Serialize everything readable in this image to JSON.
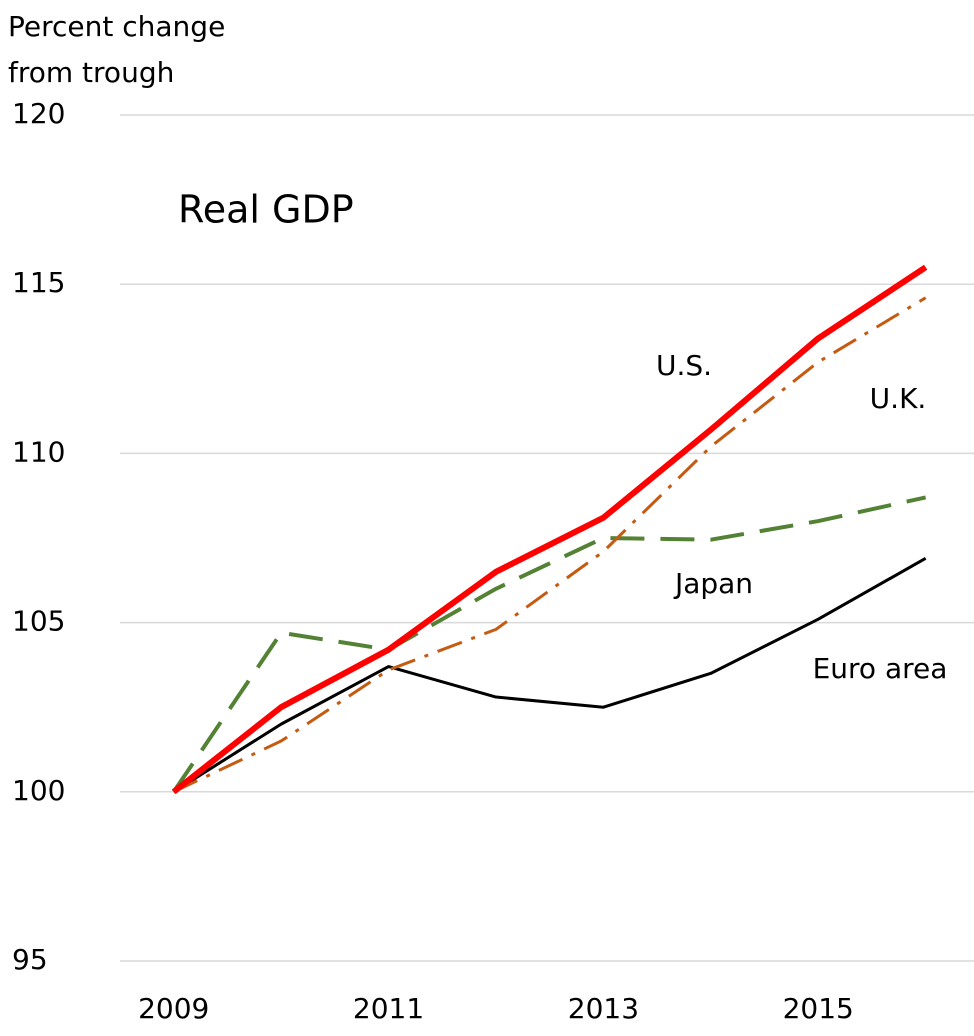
{
  "chart_data": {
    "type": "line",
    "title": "Real GDP",
    "y_label": [
      "Percent change",
      "from trough"
    ],
    "x": [
      2009,
      2010,
      2011,
      2012,
      2013,
      2014,
      2015,
      2016
    ],
    "xlim": [
      2008.5,
      2016.45
    ],
    "xticks": [
      2009,
      2011,
      2013,
      2015
    ],
    "ylim": [
      95,
      120
    ],
    "yticks": [
      95,
      100,
      105,
      110,
      115,
      120
    ],
    "grid": true,
    "series": [
      {
        "name": "U.S.",
        "color": "#ff0000",
        "style": "solid",
        "values": [
          100,
          102.5,
          104.2,
          106.5,
          108.1,
          110.7,
          113.4,
          115.5
        ]
      },
      {
        "name": "U.K.",
        "color": "#c55a11",
        "style": "dashdot",
        "values": [
          100,
          101.5,
          103.6,
          104.8,
          107.1,
          110.2,
          112.7,
          114.6
        ]
      },
      {
        "name": "Japan",
        "color": "#548235",
        "style": "dash",
        "values": [
          100,
          104.7,
          104.2,
          106.0,
          107.5,
          107.45,
          108.0,
          108.7
        ]
      },
      {
        "name": "Euro area",
        "color": "#000000",
        "style": "solid",
        "values": [
          100,
          102.0,
          103.7,
          102.8,
          102.5,
          103.5,
          105.1,
          106.9
        ]
      }
    ]
  }
}
